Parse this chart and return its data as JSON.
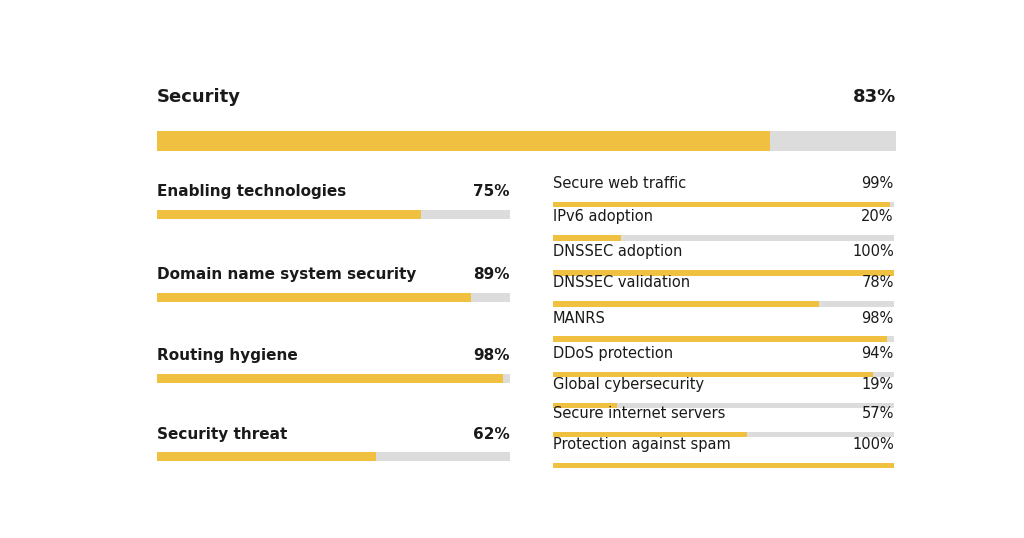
{
  "background_color": "#ffffff",
  "title_color": "#1a1a1a",
  "bar_color_filled": "#F0C040",
  "bar_color_empty": "#DCDCDC",
  "overall": {
    "label": "Security",
    "value": 83
  },
  "left_categories": [
    {
      "label": "Enabling technologies",
      "value": 75
    },
    {
      "label": "Domain name system security",
      "value": 89
    },
    {
      "label": "Routing hygiene",
      "value": 98
    },
    {
      "label": "Security threat",
      "value": 62
    }
  ],
  "right_categories": [
    {
      "label": "Secure web traffic",
      "value": 99
    },
    {
      "label": "IPv6 adoption",
      "value": 20
    },
    {
      "label": "DNSSEC adoption",
      "value": 100
    },
    {
      "label": "DNSSEC validation",
      "value": 78
    },
    {
      "label": "MANRS",
      "value": 98
    },
    {
      "label": "DDoS protection",
      "value": 94
    },
    {
      "label": "Global cybersecurity",
      "value": 19
    },
    {
      "label": "Secure internet servers",
      "value": 57
    },
    {
      "label": "Protection against spam",
      "value": 100
    }
  ]
}
